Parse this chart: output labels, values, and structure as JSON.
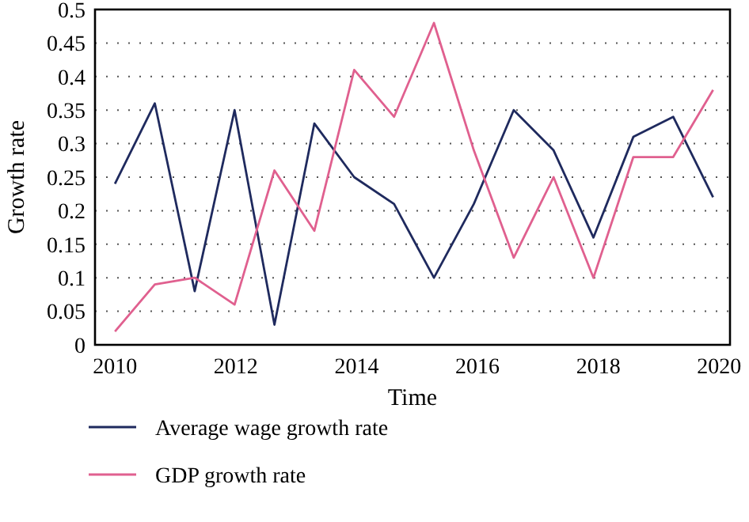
{
  "chart_data": {
    "type": "line",
    "xlabel": "Time",
    "ylabel": "Growth rate",
    "xlim": [
      2009.67,
      2020.18
    ],
    "xticks": [
      2010,
      2012,
      2014,
      2016,
      2018,
      2020
    ],
    "ylim": [
      0,
      0.5
    ],
    "yticks": [
      0,
      0.05,
      0.1,
      0.15,
      0.2,
      0.25,
      0.3,
      0.35,
      0.4,
      0.45,
      0.5
    ],
    "grid": "y",
    "legend": "bottom",
    "marker": "none",
    "line_style": "solid",
    "x": [
      2010,
      2010.66,
      2011.32,
      2011.98,
      2012.64,
      2013.3,
      2013.96,
      2014.62,
      2015.28,
      2015.94,
      2016.6,
      2017.26,
      2017.92,
      2018.58,
      2019.24,
      2019.9
    ],
    "series": [
      {
        "name": "Average wage growth rate",
        "color": "#1f2a5e",
        "values": [
          0.24,
          0.36,
          0.08,
          0.35,
          0.03,
          0.33,
          0.25,
          0.21,
          0.1,
          0.21,
          0.35,
          0.29,
          0.16,
          0.31,
          0.34,
          0.22
        ]
      },
      {
        "name": "GDP growth rate",
        "color": "#e0608f",
        "values": [
          0.02,
          0.09,
          0.1,
          0.06,
          0.26,
          0.17,
          0.41,
          0.34,
          0.48,
          0.29,
          0.13,
          0.25,
          0.1,
          0.28,
          0.28,
          0.38
        ]
      }
    ]
  }
}
